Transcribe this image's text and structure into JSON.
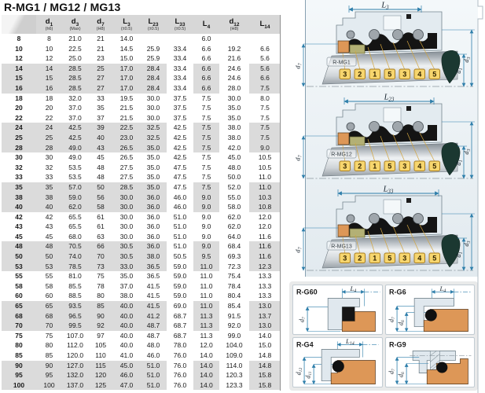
{
  "title": "R-MG1 / MG12 / MG13",
  "table": {
    "columns": [
      {
        "main": "",
        "sub": "",
        "note": ""
      },
      {
        "main": "d",
        "sub": "1",
        "note": "(h6)"
      },
      {
        "main": "d",
        "sub": "3",
        "note": "(Max)"
      },
      {
        "main": "d",
        "sub": "7",
        "note": "(H8)"
      },
      {
        "main": "L",
        "sub": "3",
        "note": "(±0.5)"
      },
      {
        "main": "L",
        "sub": "23",
        "note": "(±0.5)"
      },
      {
        "main": "L",
        "sub": "33",
        "note": "(±0.5)"
      },
      {
        "main": "L",
        "sub": "4",
        "note": ""
      },
      {
        "main": "d",
        "sub": "12",
        "note": "(H8)"
      },
      {
        "main": "L",
        "sub": "14",
        "note": ""
      }
    ],
    "rows": [
      [
        "8",
        "8",
        "21.0",
        "21",
        "14.0",
        "",
        "",
        "6.0",
        "",
        ""
      ],
      [
        "10",
        "10",
        "22.5",
        "21",
        "14.5",
        "25.9",
        "33.4",
        "6.6",
        "19.2",
        "6.6"
      ],
      [
        "12",
        "12",
        "25.0",
        "23",
        "15.0",
        "25.9",
        "33.4",
        "6.6",
        "21.6",
        "5.6"
      ],
      [
        "14",
        "14",
        "28.5",
        "25",
        "17.0",
        "28.4",
        "33.4",
        "6.6",
        "24.6",
        "5.6"
      ],
      [
        "15",
        "15",
        "28.5",
        "27",
        "17.0",
        "28.4",
        "33.4",
        "6.6",
        "24.6",
        "6.6"
      ],
      [
        "16",
        "16",
        "28.5",
        "27",
        "17.0",
        "28.4",
        "33.4",
        "6.6",
        "28.0",
        "7.5"
      ],
      [
        "18",
        "18",
        "32.0",
        "33",
        "19.5",
        "30.0",
        "37.5",
        "7.5",
        "30.0",
        "8.0"
      ],
      [
        "20",
        "20",
        "37.0",
        "35",
        "21.5",
        "30.0",
        "37.5",
        "7.5",
        "35.0",
        "7.5"
      ],
      [
        "22",
        "22",
        "37.0",
        "37",
        "21.5",
        "30.0",
        "37.5",
        "7.5",
        "35.0",
        "7.5"
      ],
      [
        "24",
        "24",
        "42.5",
        "39",
        "22.5",
        "32.5",
        "42.5",
        "7.5",
        "38.0",
        "7.5"
      ],
      [
        "25",
        "25",
        "42.5",
        "40",
        "23.0",
        "32.5",
        "42.5",
        "7.5",
        "38.0",
        "7.5"
      ],
      [
        "28",
        "28",
        "49.0",
        "43",
        "26.5",
        "35.0",
        "42.5",
        "7.5",
        "42.0",
        "9.0"
      ],
      [
        "30",
        "30",
        "49.0",
        "45",
        "26.5",
        "35.0",
        "42.5",
        "7.5",
        "45.0",
        "10.5"
      ],
      [
        "32",
        "32",
        "53.5",
        "48",
        "27.5",
        "35.0",
        "47.5",
        "7.5",
        "48.0",
        "10.5"
      ],
      [
        "33",
        "33",
        "53.5",
        "48",
        "27.5",
        "35.0",
        "47.5",
        "7.5",
        "50.0",
        "11.0"
      ],
      [
        "35",
        "35",
        "57.0",
        "50",
        "28.5",
        "35.0",
        "47.5",
        "7.5",
        "52.0",
        "11.0"
      ],
      [
        "38",
        "38",
        "59.0",
        "56",
        "30.0",
        "36.0",
        "46.0",
        "9.0",
        "55.0",
        "10.3"
      ],
      [
        "40",
        "40",
        "62.0",
        "58",
        "30.0",
        "36.0",
        "46.0",
        "9.0",
        "58.0",
        "10.8"
      ],
      [
        "42",
        "42",
        "65.5",
        "61",
        "30.0",
        "36.0",
        "51.0",
        "9.0",
        "62.0",
        "12.0"
      ],
      [
        "43",
        "43",
        "65.5",
        "61",
        "30.0",
        "36.0",
        "51.0",
        "9.0",
        "62.0",
        "12.0"
      ],
      [
        "45",
        "45",
        "68.0",
        "63",
        "30.0",
        "36.0",
        "51.0",
        "9.0",
        "64.0",
        "11.6"
      ],
      [
        "48",
        "48",
        "70.5",
        "66",
        "30.5",
        "36.0",
        "51.0",
        "9.0",
        "68.4",
        "11.6"
      ],
      [
        "50",
        "50",
        "74.0",
        "70",
        "30.5",
        "38.0",
        "50.5",
        "9.5",
        "69.3",
        "11.6"
      ],
      [
        "53",
        "53",
        "78.5",
        "73",
        "33.0",
        "36.5",
        "59.0",
        "11.0",
        "72.3",
        "12.3"
      ],
      [
        "55",
        "55",
        "81.0",
        "75",
        "35.0",
        "36.5",
        "59.0",
        "11.0",
        "75.4",
        "13.3"
      ],
      [
        "58",
        "58",
        "85.5",
        "78",
        "37.0",
        "41.5",
        "59.0",
        "11.0",
        "78.4",
        "13.3"
      ],
      [
        "60",
        "60",
        "88.5",
        "80",
        "38.0",
        "41.5",
        "59.0",
        "11.0",
        "80.4",
        "13.3"
      ],
      [
        "65",
        "65",
        "93.5",
        "85",
        "40.0",
        "41.5",
        "69.0",
        "11.0",
        "85.4",
        "13.0"
      ],
      [
        "68",
        "68",
        "96.5",
        "90",
        "40.0",
        "41.2",
        "68.7",
        "11.3",
        "91.5",
        "13.7"
      ],
      [
        "70",
        "70",
        "99.5",
        "92",
        "40.0",
        "48.7",
        "68.7",
        "11.3",
        "92.0",
        "13.0"
      ],
      [
        "75",
        "75",
        "107.0",
        "97",
        "40.0",
        "48.7",
        "68.7",
        "11.3",
        "99.0",
        "14.0"
      ],
      [
        "80",
        "80",
        "112.0",
        "105",
        "40.0",
        "48.0",
        "78.0",
        "12.0",
        "104.0",
        "15.0"
      ],
      [
        "85",
        "85",
        "120.0",
        "110",
        "41.0",
        "46.0",
        "76.0",
        "14.0",
        "109.0",
        "14.8"
      ],
      [
        "90",
        "90",
        "127.0",
        "115",
        "45.0",
        "51.0",
        "76.0",
        "14.0",
        "114.0",
        "14.8"
      ],
      [
        "95",
        "95",
        "132.0",
        "120",
        "46.0",
        "51.0",
        "76.0",
        "14.0",
        "120.3",
        "15.8"
      ],
      [
        "100",
        "100",
        "137.0",
        "125",
        "47.0",
        "51.0",
        "76.0",
        "14.0",
        "123.3",
        "15.8"
      ]
    ]
  },
  "diagrams": [
    {
      "label": "R-MG1",
      "dim_top": {
        "main": "L",
        "sub": "3"
      },
      "callouts": [
        "3",
        "2",
        "1",
        "5",
        "3",
        "4",
        "5"
      ],
      "dim_d1": {
        "main": "d",
        "sub": "1"
      },
      "dim_d3": {
        "main": "d",
        "sub": "3"
      },
      "dim_d7": {
        "main": "d",
        "sub": "7"
      }
    },
    {
      "label": "R-MG12",
      "dim_top": {
        "main": "L",
        "sub": "23"
      },
      "callouts": [
        "3",
        "2",
        "1",
        "5",
        "3",
        "4",
        "5"
      ],
      "dim_d1": {
        "main": "d",
        "sub": "1"
      },
      "dim_d3": {
        "main": "d",
        "sub": "3"
      },
      "dim_d7": {
        "main": "d",
        "sub": "7"
      }
    },
    {
      "label": "R-MG13",
      "dim_top": {
        "main": "L",
        "sub": "33"
      },
      "callouts": [
        "3",
        "2",
        "1",
        "5",
        "3",
        "4",
        "5"
      ],
      "dim_d1": {
        "main": "d",
        "sub": "1"
      },
      "dim_d3": {
        "main": "d",
        "sub": "3"
      },
      "dim_d7": {
        "main": "d",
        "sub": "7"
      }
    }
  ],
  "seats": [
    {
      "label": "R-G60",
      "dim_top": {
        "main": "L",
        "sub": "4"
      },
      "d_a": {
        "main": "d",
        "sub": "7"
      }
    },
    {
      "label": "R-G6",
      "dim_top": {
        "main": "L",
        "sub": "4"
      },
      "d_a": {
        "main": "d",
        "sub": "7"
      },
      "d_b": {
        "main": "d",
        "sub": "6"
      }
    },
    {
      "label": "R-G4",
      "dim_top": {
        "main": "L",
        "sub": "14"
      },
      "d_a": {
        "main": "d",
        "sub": "12"
      },
      "d_b": {
        "main": "d",
        "sub": "11"
      }
    },
    {
      "label": "R-G9",
      "d_a": {
        "main": "d",
        "sub": "7"
      },
      "d_b": {
        "main": "d",
        "sub": "6"
      }
    }
  ],
  "colors": {
    "dimension_blue": "#2f7fab",
    "orange_elastomer": "#dd9757",
    "olive_seal_face": "#b3b075",
    "chip_yellow": "#f7d66e",
    "housing_light": "#e3ebf0",
    "dark_seal": "#141414",
    "shaft_end_dark": "#1b3831",
    "header_gray": "#d7d7d7",
    "stripe_gray": "#dbdbdb"
  }
}
